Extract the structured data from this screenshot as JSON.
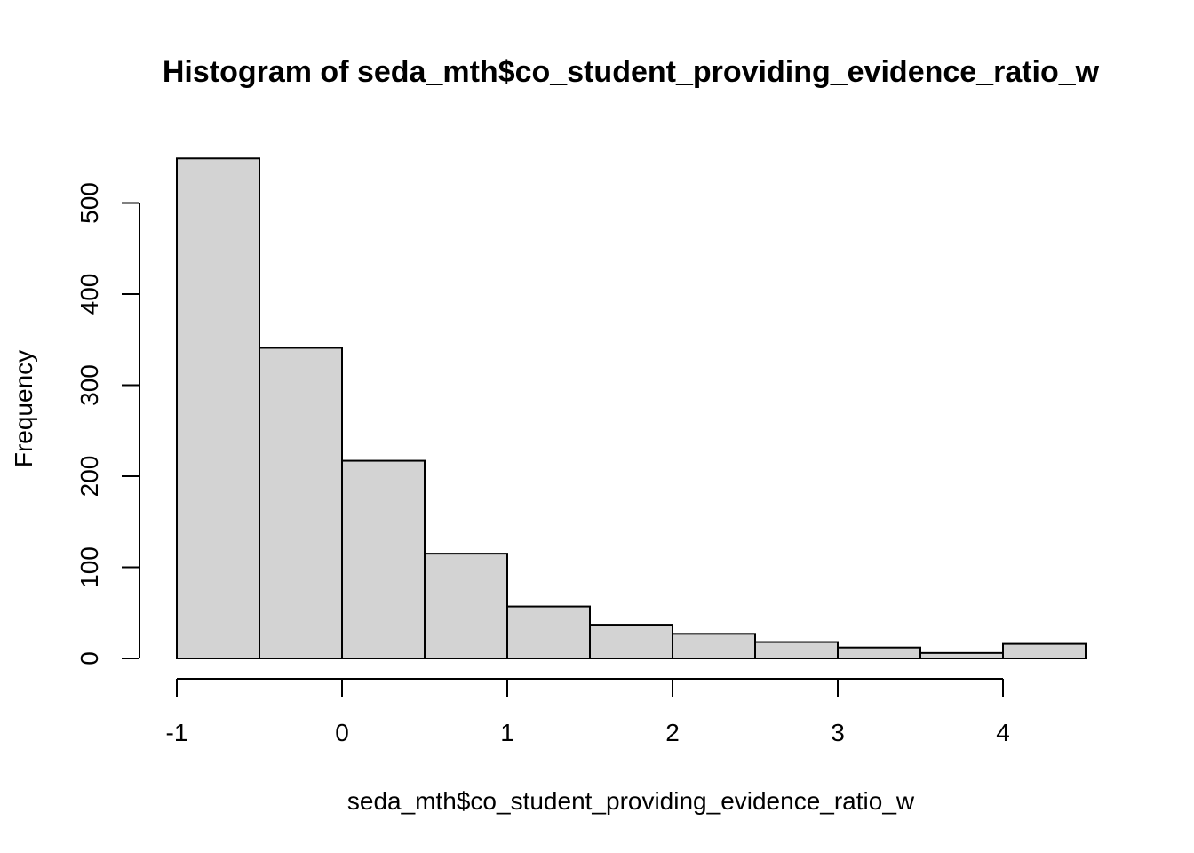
{
  "chart_data": {
    "type": "bar",
    "title": "Histogram of seda_mth$co_student_providing_evidence_ratio_w",
    "xlabel": "seda_mth$co_student_providing_evidence_ratio_w",
    "ylabel": "Frequency",
    "bin_edges": [
      -1,
      -0.5,
      0,
      0.5,
      1,
      1.5,
      2,
      2.5,
      3,
      3.5,
      4,
      4.5
    ],
    "values": [
      549,
      341,
      217,
      115,
      57,
      37,
      27,
      18,
      12,
      6,
      16
    ],
    "xlim": [
      -1,
      4.5
    ],
    "ylim": [
      0,
      549
    ],
    "x_ticks": [
      -1,
      0,
      1,
      2,
      3,
      4
    ],
    "x_tick_labels": [
      "-1",
      "0",
      "1",
      "2",
      "3",
      "4"
    ],
    "y_ticks": [
      0,
      100,
      200,
      300,
      400,
      500
    ],
    "y_tick_labels": [
      "0",
      "100",
      "200",
      "300",
      "400",
      "500"
    ],
    "bar_fill": "#d3d3d3",
    "bar_stroke": "#000000",
    "grid": false,
    "legend": "none"
  }
}
